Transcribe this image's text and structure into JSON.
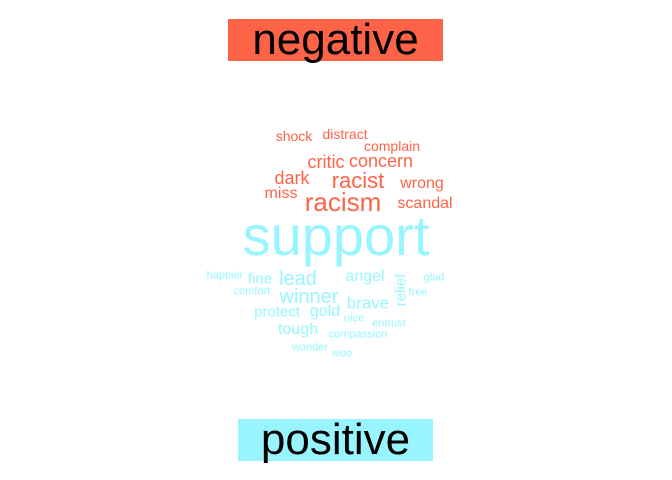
{
  "chart_data": {
    "type": "wordcloud",
    "groups": [
      {
        "label": "negative",
        "color": "#ff6347",
        "words": [
          "shock",
          "distract",
          "complain",
          "critic",
          "concern",
          "dark",
          "racist",
          "miss",
          "wrong",
          "racism",
          "scandal"
        ]
      },
      {
        "label": "positive",
        "color": "#98f5ff",
        "words": [
          "support",
          "happier",
          "fine",
          "lead",
          "angel",
          "relief",
          "glad",
          "comfort",
          "winner",
          "free",
          "brave",
          "protect",
          "gold",
          "nice",
          "entrust",
          "tough",
          "compassion",
          "wonder",
          "woo"
        ]
      }
    ]
  }
}
